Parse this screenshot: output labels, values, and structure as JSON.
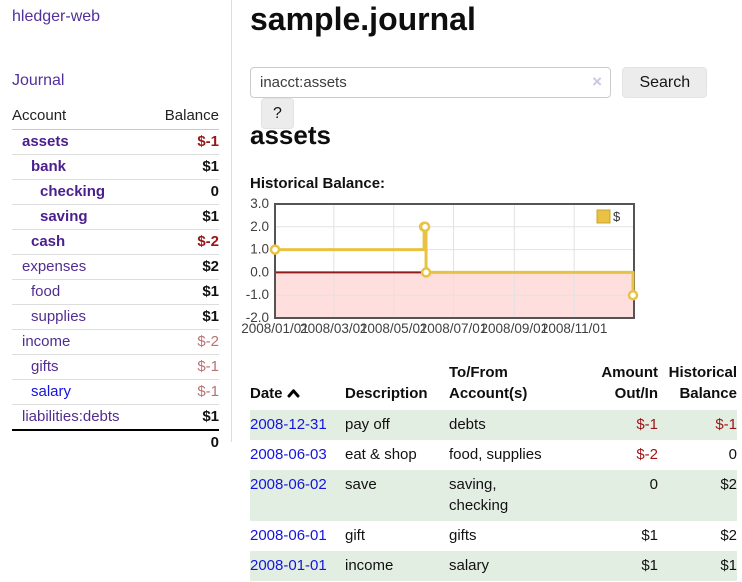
{
  "sidebar": {
    "app_title": "hledger-web",
    "journal_label": "Journal",
    "accounts_table": {
      "col_account": "Account",
      "col_balance": "Balance",
      "rows": [
        {
          "name": "assets",
          "level": 0,
          "bold": true,
          "link": "purple",
          "balance": "$-1",
          "balance_class": "neg-strong"
        },
        {
          "name": "bank",
          "level": 1,
          "bold": true,
          "link": "purple",
          "balance": "$1",
          "balance_class": "pos"
        },
        {
          "name": "checking",
          "level": 2,
          "bold": true,
          "link": "purple",
          "balance": "0",
          "balance_class": "pos"
        },
        {
          "name": "saving",
          "level": 2,
          "bold": true,
          "link": "purple",
          "balance": "$1",
          "balance_class": "pos"
        },
        {
          "name": "cash",
          "level": 1,
          "bold": true,
          "link": "purple",
          "balance": "$-2",
          "balance_class": "neg-strong"
        },
        {
          "name": "expenses",
          "level": 0,
          "bold": false,
          "link": "purple",
          "balance": "$2",
          "balance_class": "pos"
        },
        {
          "name": "food",
          "level": 1,
          "bold": false,
          "link": "purple",
          "balance": "$1",
          "balance_class": "pos"
        },
        {
          "name": "supplies",
          "level": 1,
          "bold": false,
          "link": "purple",
          "balance": "$1",
          "balance_class": "pos"
        },
        {
          "name": "income",
          "level": 0,
          "bold": false,
          "link": "purple",
          "balance": "$-2",
          "balance_class": "neg-soft"
        },
        {
          "name": "gifts",
          "level": 1,
          "bold": false,
          "link": "purple",
          "balance": "$-1",
          "balance_class": "neg-soft"
        },
        {
          "name": "salary",
          "level": 1,
          "bold": false,
          "link": "blue",
          "balance": "$-1",
          "balance_class": "neg-soft"
        },
        {
          "name": "liabilities:debts",
          "level": 0,
          "bold": false,
          "link": "purple",
          "balance": "$1",
          "balance_class": "pos"
        }
      ],
      "total": "0"
    }
  },
  "main": {
    "title": "sample.journal",
    "search": {
      "value": "inacct:assets",
      "clear_icon": "×",
      "button_label": "Search",
      "help_label": "?"
    },
    "account_heading": "assets",
    "chart_label": "Historical Balance:"
  },
  "chart_data": {
    "type": "line",
    "step": true,
    "title": "Historical Balance",
    "legend": [
      {
        "label": "$",
        "color": "#e9c244"
      }
    ],
    "points": [
      {
        "date": "2008-01-01",
        "day": 0,
        "value": 1
      },
      {
        "date": "2008-06-01",
        "day": 152,
        "value": 2
      },
      {
        "date": "2008-06-02",
        "day": 153,
        "value": 2
      },
      {
        "date": "2008-06-03",
        "day": 154,
        "value": 0
      },
      {
        "date": "2008-12-31",
        "day": 365,
        "value": -1
      }
    ],
    "ylim": [
      -2,
      3
    ],
    "xlim_days": [
      0,
      366
    ],
    "y_ticks": [
      "3.0",
      "2.0",
      "1.0",
      "0.0",
      "-1.0",
      "-2.0"
    ],
    "x_ticks": [
      {
        "label": "2008/01/01",
        "day": 0
      },
      {
        "label": "2008/03/01",
        "day": 60
      },
      {
        "label": "2008/05/01",
        "day": 121
      },
      {
        "label": "2008/07/01",
        "day": 182
      },
      {
        "label": "2008/09/01",
        "day": 244
      },
      {
        "label": "2008/11/01",
        "day": 305
      }
    ],
    "colors": {
      "line": "#e9c244",
      "marker_fill": "#ffffff",
      "negative_region": "#ffdede",
      "zero_line": "#8f1b1b",
      "grid": "#e2e2e2",
      "border": "#545454",
      "tick_text": "#3f3f3f"
    },
    "grid": true,
    "legend_position": "top-right"
  },
  "register_table": {
    "headers": {
      "date": "Date",
      "description": "Description",
      "accounts": "To/From Account(s)",
      "amount": "Amount Out/In",
      "historical": "Historical Balance"
    },
    "rows": [
      {
        "date": "2008-12-31",
        "description": "pay off",
        "accounts": "debts",
        "amount": "$-1",
        "amount_neg": true,
        "historical": "$-1",
        "historical_neg": true,
        "shaded": true
      },
      {
        "date": "2008-06-03",
        "description": "eat & shop",
        "accounts": "food, supplies",
        "amount": "$-2",
        "amount_neg": true,
        "historical": "0",
        "historical_neg": false,
        "shaded": false
      },
      {
        "date": "2008-06-02",
        "description": "save",
        "accounts": "saving,\nchecking",
        "amount": "0",
        "amount_neg": false,
        "historical": "$2",
        "historical_neg": false,
        "shaded": true
      },
      {
        "date": "2008-06-01",
        "description": "gift",
        "accounts": "gifts",
        "amount": "$1",
        "amount_neg": false,
        "historical": "$2",
        "historical_neg": false,
        "shaded": false
      },
      {
        "date": "2008-01-01",
        "description": "income",
        "accounts": "salary",
        "amount": "$1",
        "amount_neg": false,
        "historical": "$1",
        "historical_neg": false,
        "shaded": true
      }
    ]
  }
}
